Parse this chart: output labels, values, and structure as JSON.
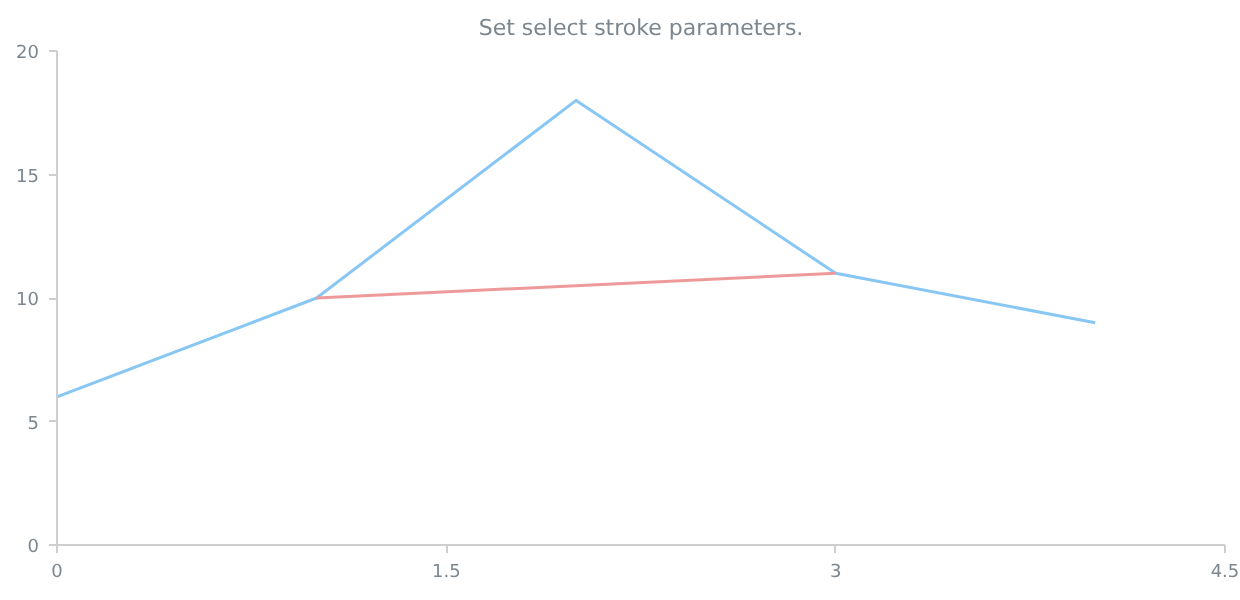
{
  "chart_data": {
    "type": "line",
    "title": "Set select stroke parameters.",
    "x": [
      0,
      1,
      2,
      3,
      4
    ],
    "series": [
      {
        "color": "#88c7f4",
        "values": [
          6,
          10,
          18,
          11,
          9
        ]
      },
      {
        "color": "#ef9a9a",
        "x": [
          1,
          3
        ],
        "values": [
          10,
          11
        ]
      }
    ],
    "xlim": [
      0,
      4.5
    ],
    "xticks": [
      0,
      1.5,
      3,
      4.5
    ],
    "ylim": [
      0,
      20
    ],
    "yticks": [
      0,
      5,
      10,
      15,
      20
    ],
    "grid": false,
    "marker": "none",
    "line_style": "solid"
  }
}
